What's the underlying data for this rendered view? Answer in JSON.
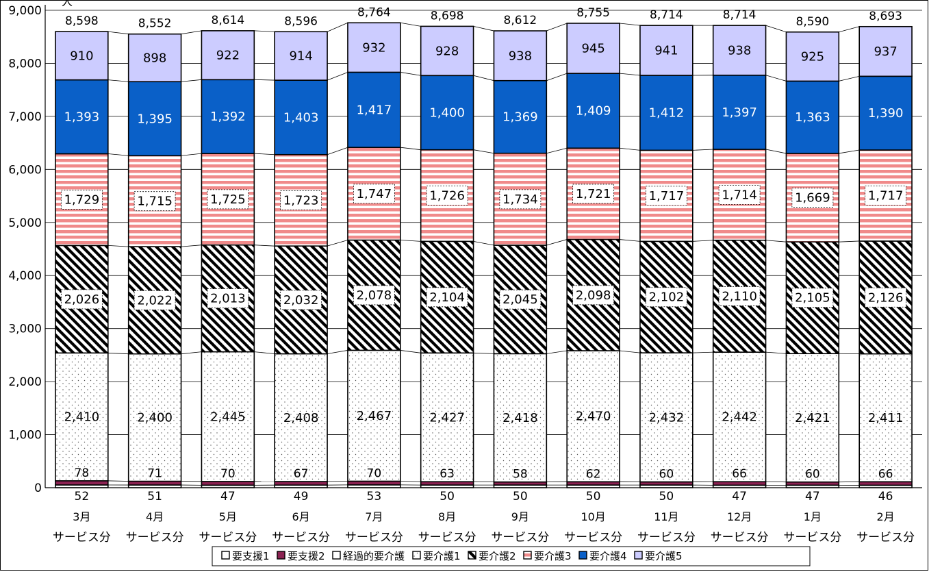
{
  "chart_data": {
    "type": "bar",
    "stacked": true,
    "y_unit_label": "人",
    "ylim": [
      0,
      9000
    ],
    "y_ticks": [
      "0",
      "1,000",
      "2,000",
      "3,000",
      "4,000",
      "5,000",
      "6,000",
      "7,000",
      "8,000",
      "9,000"
    ],
    "grid": true,
    "legend_position": "bottom",
    "categories": [
      {
        "month": "3月",
        "suffix": "サービス分"
      },
      {
        "month": "4月",
        "suffix": "サービス分"
      },
      {
        "month": "5月",
        "suffix": "サービス分"
      },
      {
        "month": "6月",
        "suffix": "サービス分"
      },
      {
        "month": "7月",
        "suffix": "サービス分"
      },
      {
        "month": "8月",
        "suffix": "サービス分"
      },
      {
        "month": "9月",
        "suffix": "サービス分"
      },
      {
        "month": "10月",
        "suffix": "サービス分"
      },
      {
        "month": "11月",
        "suffix": "サービス分"
      },
      {
        "month": "12月",
        "suffix": "サービス分"
      },
      {
        "month": "1月",
        "suffix": "サービス分"
      },
      {
        "month": "2月",
        "suffix": "サービス分"
      }
    ],
    "series": [
      {
        "name": "要支援1",
        "fill": "white",
        "values": [
          52,
          51,
          47,
          49,
          53,
          50,
          50,
          50,
          50,
          47,
          47,
          46
        ],
        "labels": [
          "52",
          "51",
          "47",
          "49",
          "53",
          "50",
          "50",
          "50",
          "50",
          "47",
          "47",
          "46"
        ]
      },
      {
        "name": "要支援2",
        "fill": "#8b2252",
        "values": [
          78,
          71,
          70,
          67,
          70,
          63,
          58,
          62,
          60,
          66,
          60,
          66
        ],
        "labels": [
          "78",
          "71",
          "70",
          "67",
          "70",
          "63",
          "58",
          "62",
          "60",
          "66",
          "60",
          "66"
        ]
      },
      {
        "name": "経過的要介護",
        "fill": "white",
        "values": [
          0,
          0,
          0,
          0,
          0,
          0,
          0,
          0,
          0,
          0,
          0,
          0
        ],
        "labels": []
      },
      {
        "name": "要介護1",
        "fill": "dots",
        "values": [
          2410,
          2400,
          2445,
          2408,
          2467,
          2427,
          2418,
          2470,
          2432,
          2442,
          2421,
          2411
        ],
        "labels": [
          "2,410",
          "2,400",
          "2,445",
          "2,408",
          "2,467",
          "2,427",
          "2,418",
          "2,470",
          "2,432",
          "2,442",
          "2,421",
          "2,411"
        ]
      },
      {
        "name": "要介護2",
        "fill": "diagonal",
        "values": [
          2026,
          2022,
          2013,
          2032,
          2078,
          2104,
          2045,
          2098,
          2102,
          2110,
          2105,
          2126
        ],
        "labels": [
          "2,026",
          "2,022",
          "2,013",
          "2,032",
          "2,078",
          "2,104",
          "2,045",
          "2,098",
          "2,102",
          "2,110",
          "2,105",
          "2,126"
        ]
      },
      {
        "name": "要介護3",
        "fill": "stripes",
        "values": [
          1729,
          1715,
          1725,
          1723,
          1747,
          1726,
          1734,
          1721,
          1717,
          1714,
          1669,
          1717
        ],
        "labels": [
          "1,729",
          "1,715",
          "1,725",
          "1,723",
          "1,747",
          "1,726",
          "1,734",
          "1,721",
          "1,717",
          "1,714",
          "1,669",
          "1,717"
        ]
      },
      {
        "name": "要介護4",
        "fill": "#0a60c8",
        "values": [
          1393,
          1395,
          1392,
          1403,
          1417,
          1400,
          1369,
          1409,
          1412,
          1397,
          1363,
          1390
        ],
        "labels": [
          "1,393",
          "1,395",
          "1,392",
          "1,403",
          "1,417",
          "1,400",
          "1,369",
          "1,409",
          "1,412",
          "1,397",
          "1,363",
          "1,390"
        ]
      },
      {
        "name": "要介護5",
        "fill": "#ccccff",
        "values": [
          910,
          898,
          922,
          914,
          932,
          928,
          938,
          945,
          941,
          938,
          925,
          937
        ],
        "labels": [
          "910",
          "898",
          "922",
          "914",
          "932",
          "928",
          "938",
          "945",
          "941",
          "938",
          "925",
          "937"
        ]
      }
    ],
    "totals": [
      "8,598",
      "8,552",
      "8,614",
      "8,596",
      "8,764",
      "8,698",
      "8,612",
      "8,755",
      "8,714",
      "8,714",
      "8,590",
      "8,693"
    ],
    "colors": {
      "stripe_red": "#f08a8a",
      "shtien_blue": "#0a60c8",
      "lavender": "#ccccff",
      "burgundy": "#8b2252"
    }
  }
}
